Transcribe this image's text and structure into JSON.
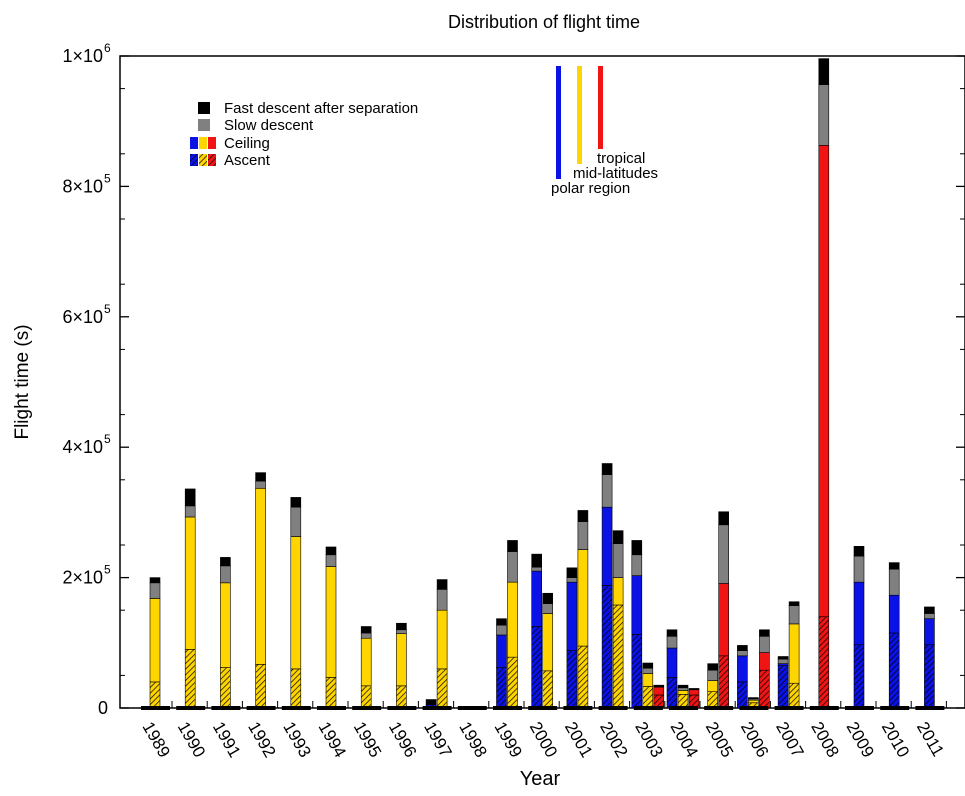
{
  "chart_data": {
    "type": "bar",
    "stacked": true,
    "title": "Distribution of flight time",
    "xlabel": "Year",
    "ylabel": "Flight time (s)",
    "ylim": [
      0,
      1000000
    ],
    "yticks": [
      {
        "value": 0,
        "mantissa": "0",
        "exp": ""
      },
      {
        "value": 200000,
        "mantissa": "2×10",
        "exp": "5"
      },
      {
        "value": 400000,
        "mantissa": "4×10",
        "exp": "5"
      },
      {
        "value": 600000,
        "mantissa": "6×10",
        "exp": "5"
      },
      {
        "value": 800000,
        "mantissa": "8×10",
        "exp": "5"
      },
      {
        "value": 1000000,
        "mantissa": "1×10",
        "exp": "6"
      }
    ],
    "years": [
      "1989",
      "1990",
      "1991",
      "1992",
      "1993",
      "1994",
      "1995",
      "1996",
      "1997",
      "1998",
      "1999",
      "2000",
      "2001",
      "2002",
      "2003",
      "2004",
      "2005",
      "2006",
      "2007",
      "2008",
      "2009",
      "2010",
      "2011"
    ],
    "grid": false,
    "legend": {
      "position": "top-left",
      "entries": [
        "Fast descent after separation",
        "Slow descent",
        "Ceiling",
        "Ascent"
      ]
    },
    "region_labels": [
      "polar region",
      "mid-latitudes",
      "tropical"
    ],
    "colors": {
      "polar": "#0a12e6",
      "mid": "#ffd500",
      "tropical": "#f01414",
      "slow_descent": "#808080",
      "fast_descent": "#000000"
    },
    "bars": [
      {
        "year": "1989",
        "region": "mid",
        "ascent": 40000,
        "ceiling": 128000,
        "slow": 24000,
        "fast": 8000
      },
      {
        "year": "1990",
        "region": "mid",
        "ascent": 90000,
        "ceiling": 203000,
        "slow": 17000,
        "fast": 26000
      },
      {
        "year": "1991",
        "region": "mid",
        "ascent": 62000,
        "ceiling": 130000,
        "slow": 26000,
        "fast": 13000
      },
      {
        "year": "1992",
        "region": "mid",
        "ascent": 67000,
        "ceiling": 270000,
        "slow": 11000,
        "fast": 13000
      },
      {
        "year": "1993",
        "region": "mid",
        "ascent": 60000,
        "ceiling": 203000,
        "slow": 45000,
        "fast": 15000
      },
      {
        "year": "1994",
        "region": "mid",
        "ascent": 47000,
        "ceiling": 170000,
        "slow": 18000,
        "fast": 12000
      },
      {
        "year": "1995",
        "region": "mid",
        "ascent": 34000,
        "ceiling": 73000,
        "slow": 8000,
        "fast": 10000
      },
      {
        "year": "1996",
        "region": "mid",
        "ascent": 34000,
        "ceiling": 80000,
        "slow": 6000,
        "fast": 10000
      },
      {
        "year": "1997",
        "region": "polar",
        "ascent": 5000,
        "ceiling": 0,
        "slow": 0,
        "fast": 8000
      },
      {
        "year": "1997",
        "region": "mid",
        "ascent": 60000,
        "ceiling": 90000,
        "slow": 32000,
        "fast": 15000
      },
      {
        "year": "1999",
        "region": "polar",
        "ascent": 62000,
        "ceiling": 50000,
        "slow": 15000,
        "fast": 10000
      },
      {
        "year": "1999",
        "region": "mid",
        "ascent": 78000,
        "ceiling": 115000,
        "slow": 47000,
        "fast": 17000
      },
      {
        "year": "2000",
        "region": "polar",
        "ascent": 125000,
        "ceiling": 85000,
        "slow": 6000,
        "fast": 20000
      },
      {
        "year": "2000",
        "region": "mid",
        "ascent": 57000,
        "ceiling": 88000,
        "slow": 15000,
        "fast": 16000
      },
      {
        "year": "2001",
        "region": "polar",
        "ascent": 88000,
        "ceiling": 105000,
        "slow": 7000,
        "fast": 15000
      },
      {
        "year": "2001",
        "region": "mid",
        "ascent": 95000,
        "ceiling": 148000,
        "slow": 43000,
        "fast": 17000
      },
      {
        "year": "2002",
        "region": "polar",
        "ascent": 188000,
        "ceiling": 120000,
        "slow": 50000,
        "fast": 17000
      },
      {
        "year": "2002",
        "region": "mid",
        "ascent": 158000,
        "ceiling": 42000,
        "slow": 52000,
        "fast": 20000
      },
      {
        "year": "2003",
        "region": "polar",
        "ascent": 113000,
        "ceiling": 90000,
        "slow": 32000,
        "fast": 22000
      },
      {
        "year": "2003",
        "region": "mid",
        "ascent": 33000,
        "ceiling": 20000,
        "slow": 8000,
        "fast": 8000
      },
      {
        "year": "2003",
        "region": "tropical",
        "ascent": 20000,
        "ceiling": 12000,
        "slow": 0,
        "fast": 3000
      },
      {
        "year": "2004",
        "region": "polar",
        "ascent": 47000,
        "ceiling": 45000,
        "slow": 18000,
        "fast": 10000
      },
      {
        "year": "2004",
        "region": "mid",
        "ascent": 21000,
        "ceiling": 6000,
        "slow": 4000,
        "fast": 4000
      },
      {
        "year": "2004",
        "region": "tropical",
        "ascent": 20000,
        "ceiling": 8000,
        "slow": 0,
        "fast": 2000
      },
      {
        "year": "2005",
        "region": "mid",
        "ascent": 25000,
        "ceiling": 17000,
        "slow": 16000,
        "fast": 10000
      },
      {
        "year": "2005",
        "region": "tropical",
        "ascent": 80000,
        "ceiling": 111000,
        "slow": 90000,
        "fast": 20000
      },
      {
        "year": "2006",
        "region": "polar",
        "ascent": 40000,
        "ceiling": 40000,
        "slow": 8000,
        "fast": 8000
      },
      {
        "year": "2006",
        "region": "mid",
        "ascent": 8000,
        "ceiling": 4000,
        "slow": 2000,
        "fast": 2000
      },
      {
        "year": "2006",
        "region": "tropical",
        "ascent": 58000,
        "ceiling": 27000,
        "slow": 25000,
        "fast": 10000
      },
      {
        "year": "2007",
        "region": "polar",
        "ascent": 65000,
        "ceiling": 3000,
        "slow": 7000,
        "fast": 4000
      },
      {
        "year": "2007",
        "region": "mid",
        "ascent": 38000,
        "ceiling": 91000,
        "slow": 28000,
        "fast": 6000
      },
      {
        "year": "2008",
        "region": "tropical",
        "ascent": 140000,
        "ceiling": 723000,
        "slow": 93000,
        "fast": 40000
      },
      {
        "year": "2009",
        "region": "polar",
        "ascent": 97000,
        "ceiling": 96000,
        "slow": 40000,
        "fast": 15000
      },
      {
        "year": "2010",
        "region": "polar",
        "ascent": 115000,
        "ceiling": 58000,
        "slow": 40000,
        "fast": 10000
      },
      {
        "year": "2011",
        "region": "polar",
        "ascent": 97000,
        "ceiling": 40000,
        "slow": 8000,
        "fast": 10000
      }
    ]
  }
}
